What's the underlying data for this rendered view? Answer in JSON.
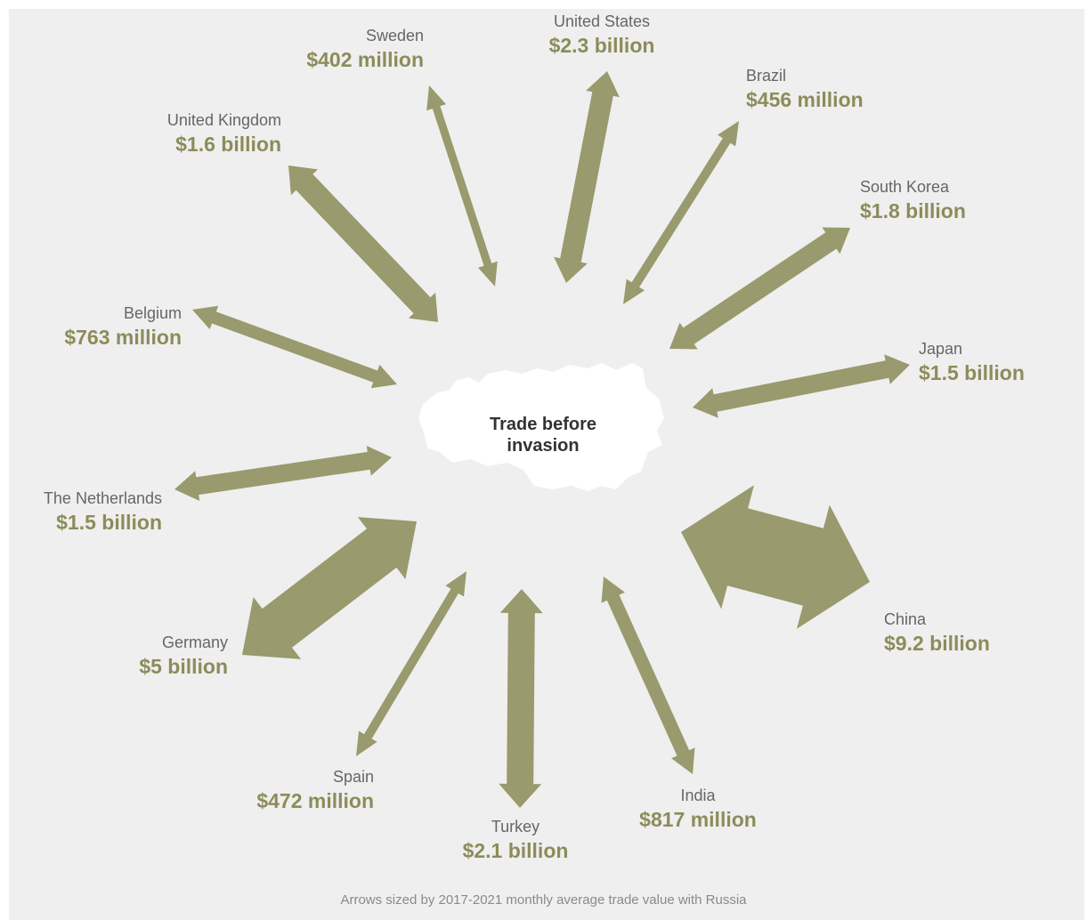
{
  "center": {
    "label_line1": "Trade before",
    "label_line2": "invasion"
  },
  "footnote": "Arrows sized by 2017-2021 monthly average trade value with Russia",
  "colors": {
    "arrow": "#999a6d",
    "value_text": "#8c8c5b",
    "name_text": "#666666",
    "background": "#efefef",
    "russia": "#ffffff"
  },
  "icons": {
    "russia": "russia-map-icon"
  },
  "countries": [
    {
      "id": "sweden",
      "name": "Sweden",
      "value": "$402 million",
      "usd_millions": 402
    },
    {
      "id": "united-states",
      "name": "United States",
      "value": "$2.3 billion",
      "usd_millions": 2300
    },
    {
      "id": "brazil",
      "name": "Brazil",
      "value": "$456 million",
      "usd_millions": 456
    },
    {
      "id": "united-kingdom",
      "name": "United Kingdom",
      "value": "$1.6 billion",
      "usd_millions": 1600
    },
    {
      "id": "south-korea",
      "name": "South Korea",
      "value": "$1.8 billion",
      "usd_millions": 1800
    },
    {
      "id": "belgium",
      "name": "Belgium",
      "value": "$763 million",
      "usd_millions": 763
    },
    {
      "id": "japan",
      "name": "Japan",
      "value": "$1.5 billion",
      "usd_millions": 1500
    },
    {
      "id": "the-netherlands",
      "name": "The Netherlands",
      "value": "$1.5 billion",
      "usd_millions": 1500
    },
    {
      "id": "china",
      "name": "China",
      "value": "$9.2 billion",
      "usd_millions": 9200
    },
    {
      "id": "germany",
      "name": "Germany",
      "value": "$5 billion",
      "usd_millions": 5000
    },
    {
      "id": "spain",
      "name": "Spain",
      "value": "$472 million",
      "usd_millions": 472
    },
    {
      "id": "turkey",
      "name": "Turkey",
      "value": "$2.1 billion",
      "usd_millions": 2100
    },
    {
      "id": "india",
      "name": "India",
      "value": "$817 million",
      "usd_millions": 817
    }
  ]
}
